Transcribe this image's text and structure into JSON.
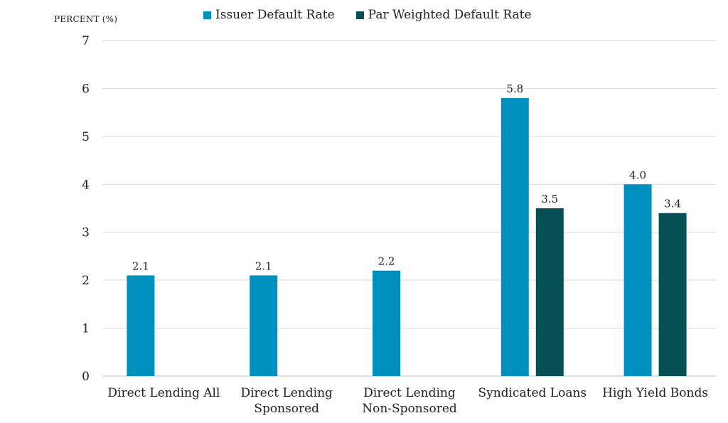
{
  "chart_data": {
    "type": "bar",
    "ylabel": "PERCENT (%)",
    "ylim": [
      0,
      7
    ],
    "yticks": [
      "0",
      "1",
      "2",
      "3",
      "4",
      "5",
      "6",
      "7"
    ],
    "grid": true,
    "legend_position": "top",
    "categories": [
      [
        "Direct Lending All"
      ],
      [
        "Direct Lending",
        "Sponsored"
      ],
      [
        "Direct Lending",
        "Non-Sponsored"
      ],
      [
        "Syndicated Loans"
      ],
      [
        "High Yield Bonds"
      ]
    ],
    "series": [
      {
        "name": "Issuer Default Rate",
        "color": "#0090c0",
        "values": [
          2.1,
          2.1,
          2.2,
          5.8,
          4.0
        ],
        "labels": [
          "2.1",
          "2.1",
          "2.2",
          "5.8",
          "4.0"
        ]
      },
      {
        "name": "Par Weighted Default Rate",
        "color": "#064f54",
        "values": [
          null,
          null,
          null,
          3.5,
          3.4
        ],
        "labels": [
          "",
          "",
          "",
          "3.5",
          "3.4"
        ]
      }
    ]
  }
}
